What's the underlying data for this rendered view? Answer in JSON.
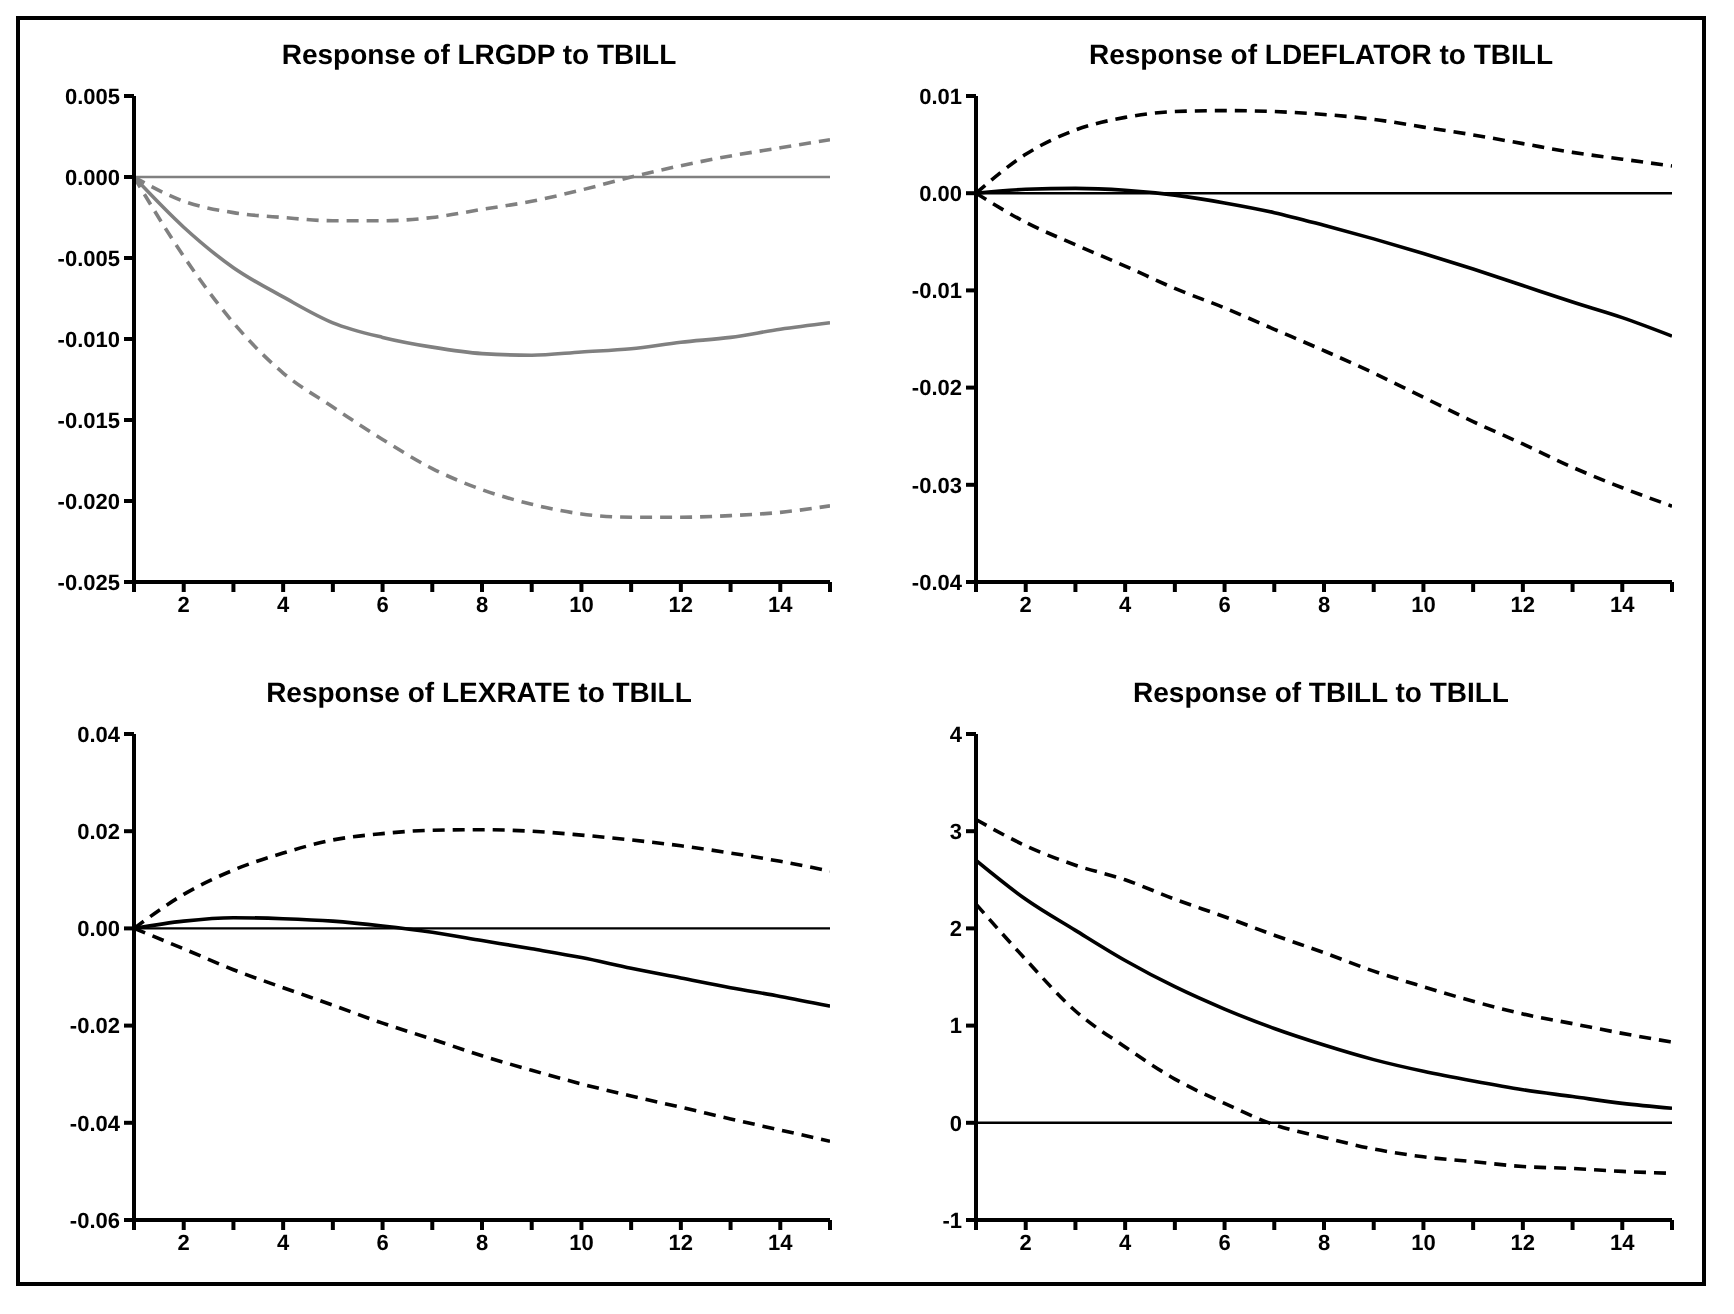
{
  "chart_data": [
    {
      "type": "line",
      "title": "Response of LRGDP to TBILL",
      "x": [
        1,
        2,
        3,
        4,
        5,
        6,
        7,
        8,
        9,
        10,
        11,
        12,
        13,
        14,
        15
      ],
      "xlim": [
        1,
        15
      ],
      "xticks": [
        {
          "value": 1,
          "label": null
        },
        2,
        {
          "value": 3,
          "label": null
        },
        4,
        {
          "value": 5,
          "label": null
        },
        6,
        {
          "value": 7,
          "label": null
        },
        8,
        {
          "value": 9,
          "label": null
        },
        10,
        {
          "value": 11,
          "label": null
        },
        12,
        {
          "value": 13,
          "label": null
        },
        14,
        {
          "value": 15,
          "label": null
        }
      ],
      "ylim": [
        -0.025,
        0.005
      ],
      "yticks": [
        0.005,
        {
          "value": 0,
          "label": "0.000"
        },
        -0.005,
        {
          "value": -0.01,
          "label": "-0.010"
        },
        -0.015,
        {
          "value": -0.02,
          "label": "-0.020"
        },
        -0.025
      ],
      "grid": false,
      "legend": false,
      "marker": "none",
      "ref_lines": [
        {
          "axis": "y",
          "value": 0,
          "color": "#808080"
        }
      ],
      "series": [
        {
          "color": "#808080",
          "line_style": "solid",
          "values": [
            0,
            -0.0031,
            -0.0056,
            -0.0074,
            -0.009,
            -0.0099,
            -0.0105,
            -0.0109,
            -0.011,
            -0.0108,
            -0.0106,
            -0.0102,
            -0.0099,
            -0.0094,
            -0.009
          ]
        },
        {
          "color": "#808080",
          "line_style": "dashed",
          "values": [
            0,
            -0.0015,
            -0.0022,
            -0.0025,
            -0.0027,
            -0.0027,
            -0.0025,
            -0.002,
            -0.0015,
            -0.0008,
            0,
            0.0007,
            0.0013,
            0.0018,
            0.0023
          ]
        },
        {
          "color": "#808080",
          "line_style": "dashed",
          "values": [
            0,
            -0.0049,
            -0.009,
            -0.0121,
            -0.0142,
            -0.0162,
            -0.018,
            -0.0193,
            -0.0202,
            -0.0208,
            -0.021,
            -0.021,
            -0.0209,
            -0.0207,
            -0.0203
          ]
        }
      ]
    },
    {
      "type": "line",
      "title": "Response of LDEFLATOR to TBILL",
      "x": [
        1,
        2,
        3,
        4,
        5,
        6,
        7,
        8,
        9,
        10,
        11,
        12,
        13,
        14,
        15
      ],
      "xlim": [
        1,
        15
      ],
      "xticks": [
        {
          "value": 1,
          "label": null
        },
        2,
        {
          "value": 3,
          "label": null
        },
        4,
        {
          "value": 5,
          "label": null
        },
        6,
        {
          "value": 7,
          "label": null
        },
        8,
        {
          "value": 9,
          "label": null
        },
        10,
        {
          "value": 11,
          "label": null
        },
        12,
        {
          "value": 13,
          "label": null
        },
        14,
        {
          "value": 15,
          "label": null
        }
      ],
      "ylim": [
        -0.04,
        0.01
      ],
      "yticks": [
        0.01,
        {
          "value": 0,
          "label": "0.00"
        },
        -0.01,
        -0.02,
        -0.03,
        -0.04
      ],
      "grid": false,
      "legend": false,
      "marker": "none",
      "ref_lines": [
        {
          "axis": "y",
          "value": 0,
          "color": "#000000"
        }
      ],
      "series": [
        {
          "color": "#000000",
          "line_style": "solid",
          "values": [
            0,
            0.0004,
            0.0005,
            0.0003,
            -0.0002,
            -0.001,
            -0.002,
            -0.0033,
            -0.0047,
            -0.0062,
            -0.0078,
            -0.0095,
            -0.0112,
            -0.0128,
            -0.0147
          ]
        },
        {
          "color": "#000000",
          "line_style": "dashed",
          "values": [
            0,
            0.004,
            0.0065,
            0.0078,
            0.0084,
            0.0085,
            0.0084,
            0.0081,
            0.0076,
            0.0068,
            0.006,
            0.0051,
            0.0042,
            0.0035,
            0.0028
          ]
        },
        {
          "color": "#000000",
          "line_style": "dashed",
          "values": [
            0,
            -0.003,
            -0.0053,
            -0.0075,
            -0.0098,
            -0.0118,
            -0.014,
            -0.0162,
            -0.0185,
            -0.021,
            -0.0235,
            -0.0258,
            -0.0282,
            -0.0303,
            -0.0322
          ]
        }
      ]
    },
    {
      "type": "line",
      "title": "Response of LEXRATE to TBILL",
      "x": [
        1,
        2,
        3,
        4,
        5,
        6,
        7,
        8,
        9,
        10,
        11,
        12,
        13,
        14,
        15
      ],
      "xlim": [
        1,
        15
      ],
      "xticks": [
        {
          "value": 1,
          "label": null
        },
        2,
        {
          "value": 3,
          "label": null
        },
        4,
        {
          "value": 5,
          "label": null
        },
        6,
        {
          "value": 7,
          "label": null
        },
        8,
        {
          "value": 9,
          "label": null
        },
        10,
        {
          "value": 11,
          "label": null
        },
        12,
        {
          "value": 13,
          "label": null
        },
        14,
        {
          "value": 15,
          "label": null
        }
      ],
      "ylim": [
        -0.06,
        0.04
      ],
      "yticks": [
        0.04,
        0.02,
        {
          "value": 0,
          "label": "0.00"
        },
        -0.02,
        -0.04,
        -0.06
      ],
      "grid": false,
      "legend": false,
      "marker": "none",
      "ref_lines": [
        {
          "axis": "y",
          "value": 0,
          "color": "#000000"
        }
      ],
      "series": [
        {
          "color": "#000000",
          "line_style": "solid",
          "values": [
            0,
            0.0015,
            0.0022,
            0.002,
            0.0015,
            0.0005,
            -0.0008,
            -0.0025,
            -0.0042,
            -0.006,
            -0.0082,
            -0.0102,
            -0.0122,
            -0.014,
            -0.016
          ]
        },
        {
          "color": "#000000",
          "line_style": "dashed",
          "values": [
            0,
            0.007,
            0.012,
            0.0155,
            0.0182,
            0.0195,
            0.0202,
            0.0203,
            0.02,
            0.0192,
            0.0182,
            0.017,
            0.0155,
            0.0138,
            0.0118
          ]
        },
        {
          "color": "#000000",
          "line_style": "dashed",
          "values": [
            0,
            -0.0042,
            -0.0085,
            -0.0122,
            -0.0158,
            -0.0195,
            -0.0228,
            -0.0262,
            -0.0292,
            -0.032,
            -0.0345,
            -0.0368,
            -0.0392,
            -0.0415,
            -0.0438
          ]
        }
      ]
    },
    {
      "type": "line",
      "title": "Response of TBILL to TBILL",
      "x": [
        1,
        2,
        3,
        4,
        5,
        6,
        7,
        8,
        9,
        10,
        11,
        12,
        13,
        14,
        15
      ],
      "xlim": [
        1,
        15
      ],
      "xticks": [
        {
          "value": 1,
          "label": null
        },
        2,
        {
          "value": 3,
          "label": null
        },
        4,
        {
          "value": 5,
          "label": null
        },
        6,
        {
          "value": 7,
          "label": null
        },
        8,
        {
          "value": 9,
          "label": null
        },
        10,
        {
          "value": 11,
          "label": null
        },
        12,
        {
          "value": 13,
          "label": null
        },
        14,
        {
          "value": 15,
          "label": null
        }
      ],
      "ylim": [
        -1,
        4
      ],
      "yticks": [
        4,
        3,
        2,
        1,
        0,
        -1
      ],
      "grid": false,
      "legend": false,
      "marker": "none",
      "ref_lines": [
        {
          "axis": "y",
          "value": 0,
          "color": "#000000"
        }
      ],
      "series": [
        {
          "color": "#000000",
          "line_style": "solid",
          "values": [
            2.7,
            2.3,
            1.98,
            1.67,
            1.4,
            1.17,
            0.97,
            0.8,
            0.65,
            0.53,
            0.43,
            0.34,
            0.27,
            0.2,
            0.15
          ]
        },
        {
          "color": "#000000",
          "line_style": "dashed",
          "values": [
            3.12,
            2.85,
            2.65,
            2.5,
            2.3,
            2.12,
            1.93,
            1.75,
            1.56,
            1.4,
            1.25,
            1.12,
            1.02,
            0.92,
            0.83
          ]
        },
        {
          "color": "#000000",
          "line_style": "dashed",
          "values": [
            2.25,
            1.68,
            1.15,
            0.78,
            0.45,
            0.2,
            -0.02,
            -0.15,
            -0.27,
            -0.35,
            -0.4,
            -0.45,
            -0.47,
            -0.5,
            -0.52
          ]
        }
      ]
    }
  ]
}
